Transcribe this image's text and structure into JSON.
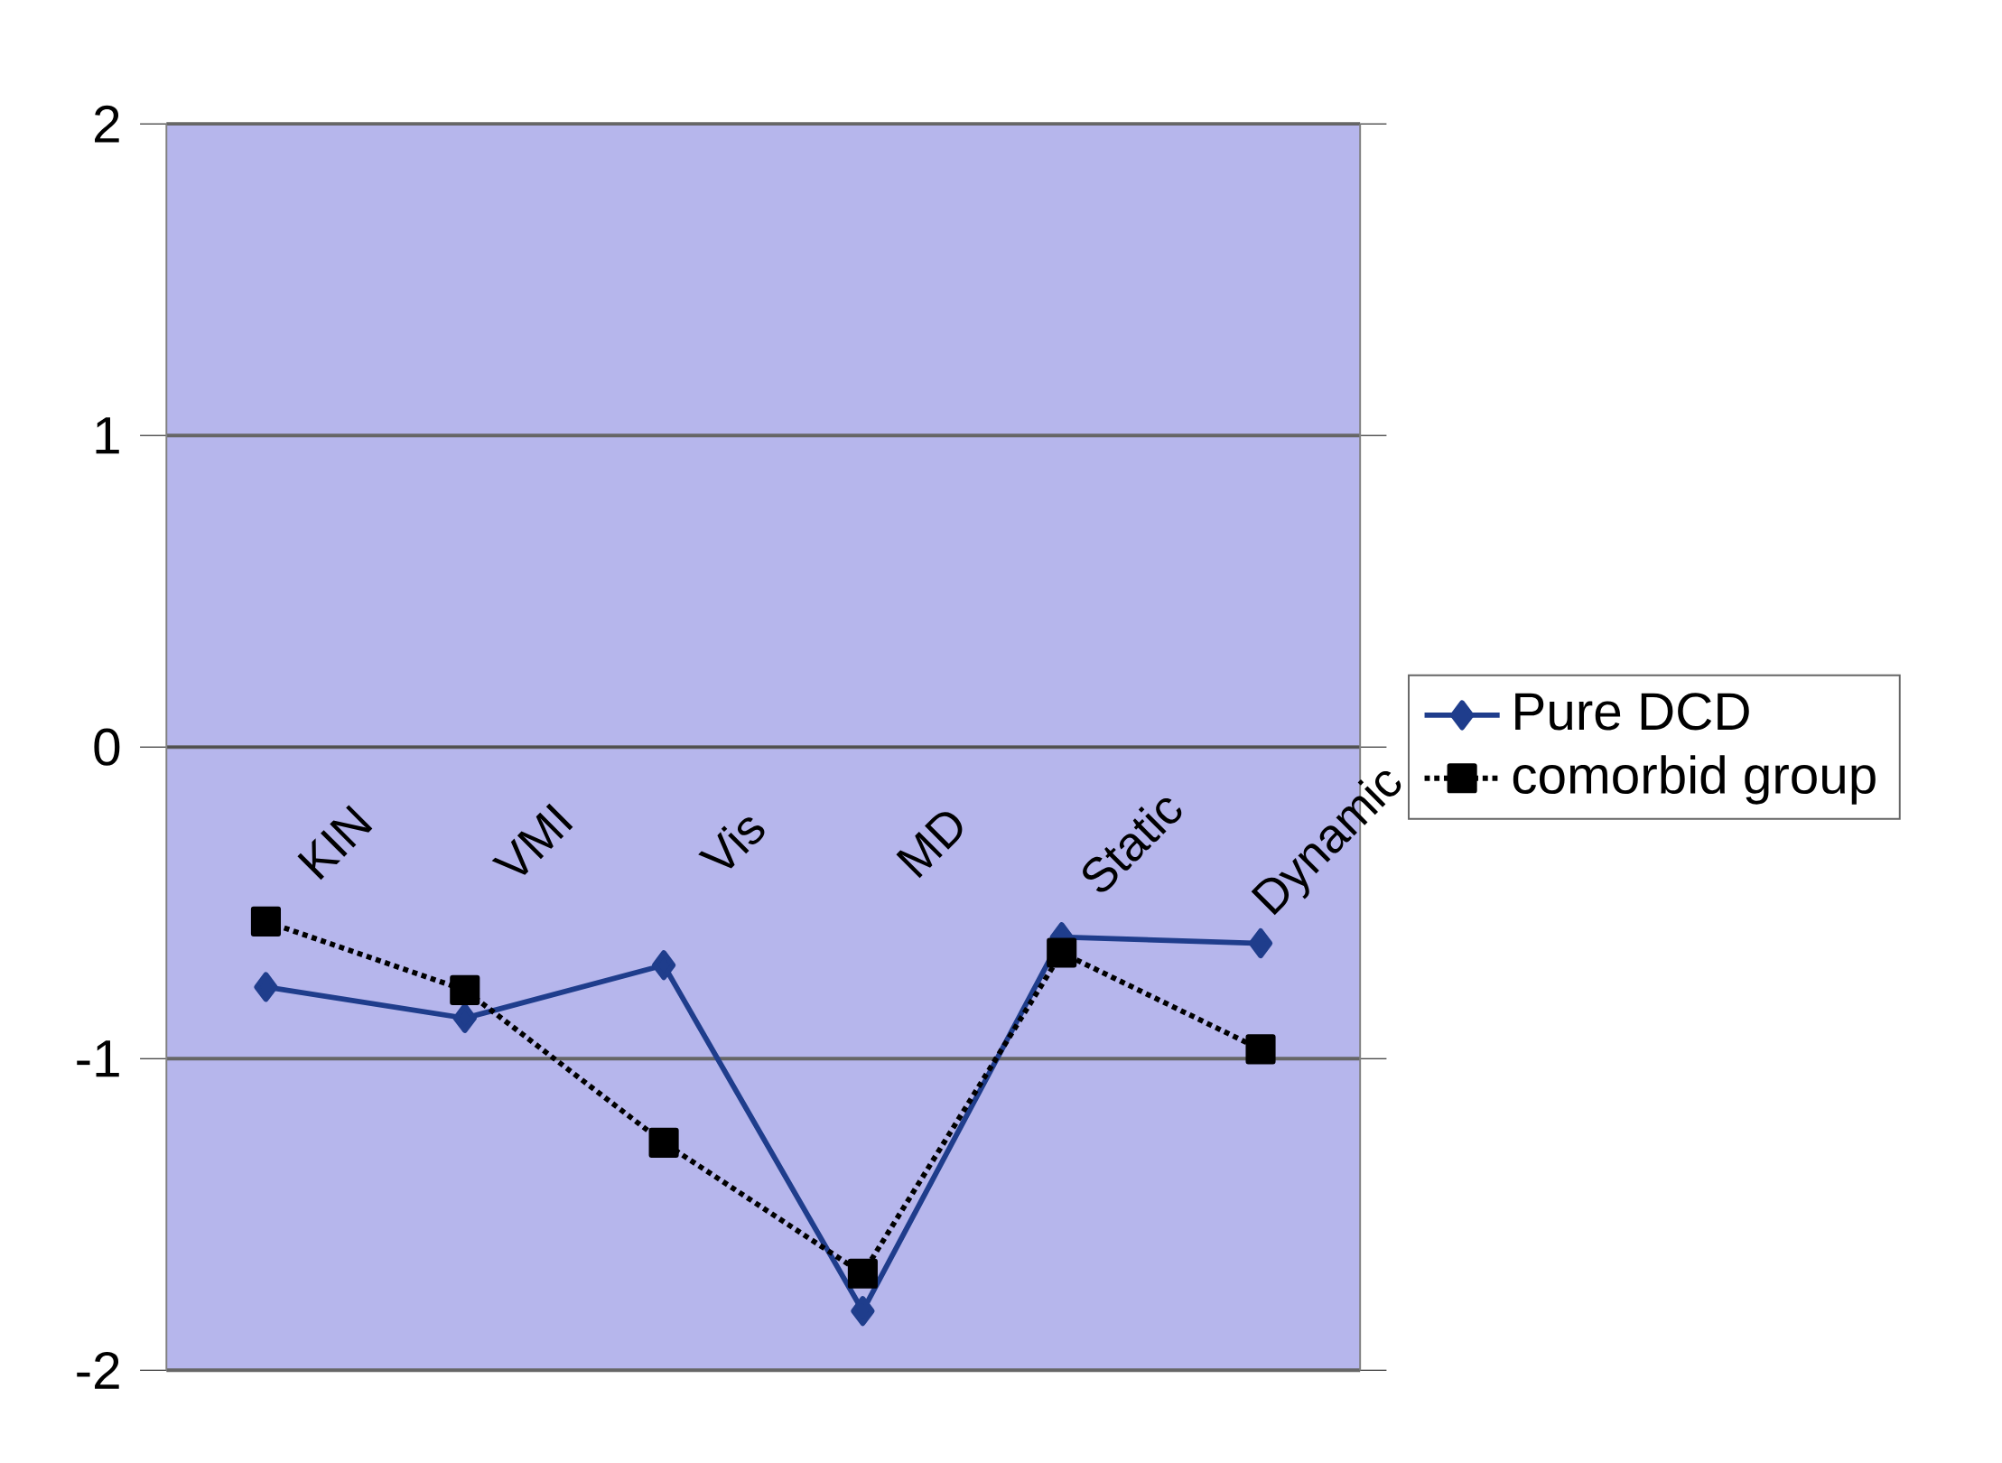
{
  "chart_data": {
    "type": "line",
    "categories": [
      "KIN",
      "VMI",
      "Vis",
      "MD",
      "Static",
      "Dynamic"
    ],
    "series": [
      {
        "name": "Pure DCD",
        "color": "#1f3d8c",
        "marker": "diamond",
        "line_style": "solid",
        "values": [
          -0.77,
          -0.87,
          -0.7,
          -1.81,
          -0.61,
          -0.63
        ]
      },
      {
        "name": "comorbid group",
        "color": "#000000",
        "marker": "square",
        "line_style": "dotted",
        "values": [
          -0.56,
          -0.78,
          -1.27,
          -1.69,
          -0.66,
          -0.97
        ]
      }
    ],
    "ylim": [
      -2,
      2
    ],
    "yticks": [
      -2,
      -1,
      0,
      1,
      2
    ],
    "grid": "y",
    "legend": "right"
  }
}
